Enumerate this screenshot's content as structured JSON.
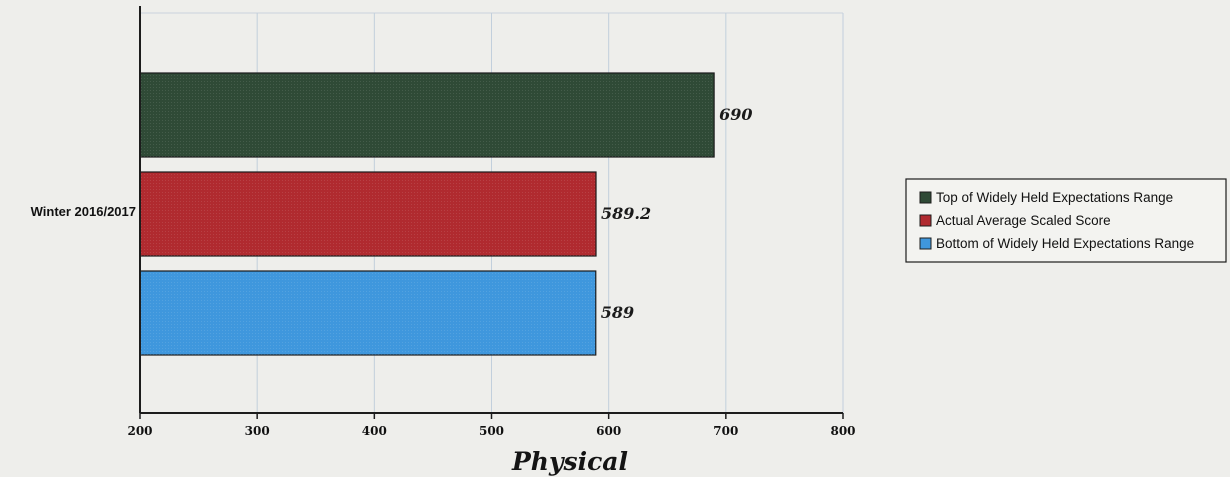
{
  "chart_data": {
    "type": "bar",
    "orientation": "horizontal",
    "categories": [
      "Winter 2016/2017"
    ],
    "series": [
      {
        "name": "Top of Widely Held Expectations Range",
        "values": [
          690
        ],
        "label": "690",
        "color": "#2f4a36"
      },
      {
        "name": "Actual Average Scaled Score",
        "values": [
          589.2
        ],
        "label": "589.2",
        "color": "#b02a2f"
      },
      {
        "name": "Bottom of Widely Held Expectations Range",
        "values": [
          589
        ],
        "label": "589",
        "color": "#3f97dd"
      }
    ],
    "xlabel": "Physical",
    "xlim": [
      200,
      800
    ],
    "xticks": [
      200,
      300,
      400,
      500,
      600,
      700,
      800
    ],
    "grid": "vertical",
    "legend_position": "right"
  }
}
